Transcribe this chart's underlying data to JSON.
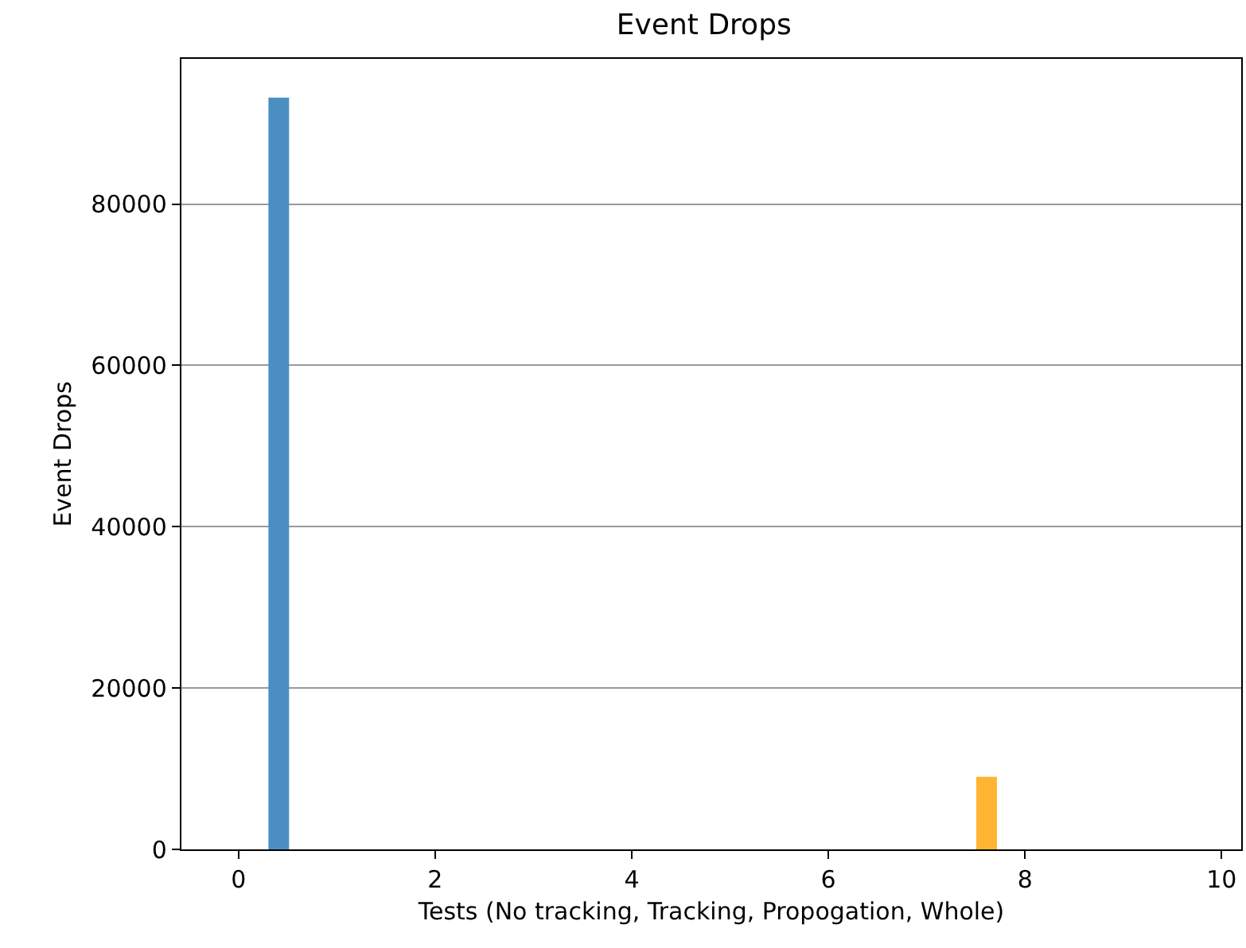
{
  "chart_data": {
    "type": "bar",
    "title": "Event Drops",
    "xlabel": "Tests (No tracking, Tracking, Propogation, Whole)",
    "ylabel": "Event Drops",
    "series": [
      {
        "color": "#4b8fc2",
        "x": [
          0.41
        ],
        "values": [
          93200
        ]
      },
      {
        "color": "#ffb432",
        "x": [
          7.61
        ],
        "values": [
          9000
        ]
      }
    ],
    "xlim": [
      -0.58,
      10.2
    ],
    "xticks": [
      0,
      2,
      4,
      6,
      8,
      10
    ],
    "ylim": [
      0,
      98000
    ],
    "yticks": [
      0,
      20000,
      40000,
      60000,
      80000
    ],
    "grid": "y"
  }
}
